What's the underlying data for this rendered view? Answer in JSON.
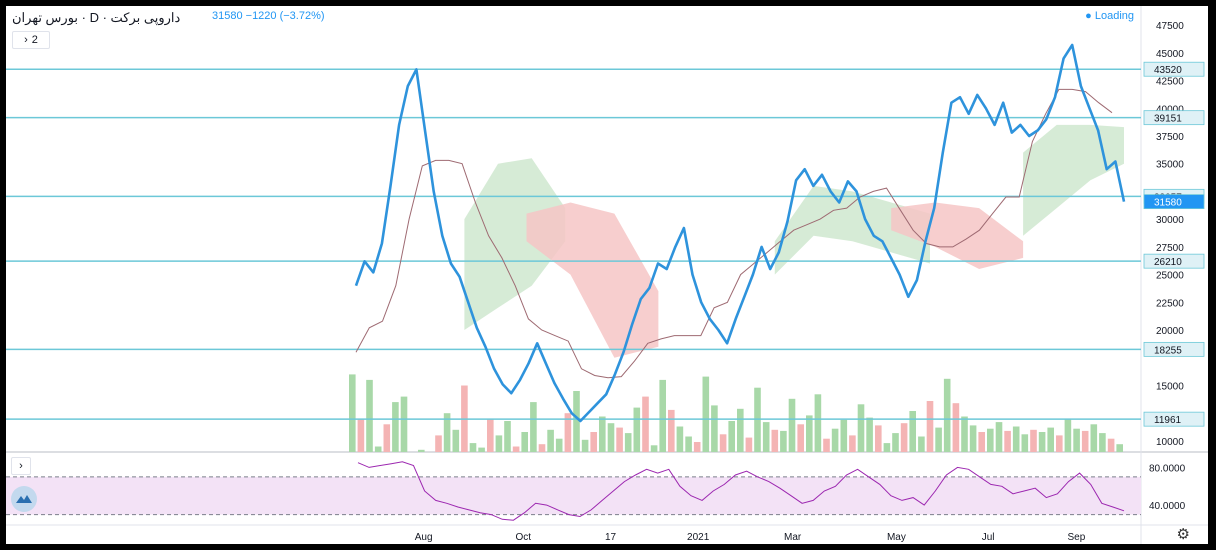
{
  "header": {
    "title": "داروپی برکت · D · بورس تهران",
    "price_line": "31580 −1220 (−3.72%)",
    "loading": "Loading"
  },
  "toolbar": {
    "collapse_count": "2"
  },
  "icons": {
    "collapse": "chevron-right-icon",
    "expand_rsi": "chevron-right-icon",
    "settings": "gear-icon",
    "logo": "mountain-logo-icon"
  },
  "colors": {
    "price_line": "#2e93dc",
    "baseline": "#9e6a72",
    "cloud_bull": "#cfe8cf",
    "cloud_bear": "#f6c5c5",
    "hline": "#6cc8d8",
    "label_bg": "#2196f3",
    "vol_up": "#a8d8a8",
    "vol_down": "#f4b4b4",
    "rsi_line": "#9c27b0",
    "rsi_band": "#f3e2f6"
  },
  "chart_data": {
    "type": "line",
    "title": "داروپی برکت",
    "x_tick_labels": [
      "Aug",
      "Oct",
      "17",
      "2021",
      "Mar",
      "May",
      "Jul",
      "Sep"
    ],
    "y_tick_labels": [
      "47500",
      "45000",
      "42500",
      "40000",
      "37500",
      "35000",
      "30000",
      "27500",
      "25000",
      "22500",
      "20000",
      "15000",
      "10000"
    ],
    "ylim": [
      9000,
      48500
    ],
    "price_labels": [
      "43520",
      "39151",
      "32057",
      "31580",
      "26210",
      "18255",
      "11961"
    ],
    "horizontal_lines": [
      43520,
      39151,
      32057,
      26210,
      18255,
      11961
    ],
    "last_price": 31580,
    "series": [
      {
        "name": "",
        "values": [
          24000,
          26200,
          25200,
          27800,
          33000,
          38500,
          42000,
          43500,
          38000,
          32500,
          28500,
          26000,
          24800,
          22500,
          20200,
          18500,
          16500,
          15100,
          14300,
          15500,
          17000,
          18800,
          17000,
          15200,
          13800,
          12500,
          11800,
          12600,
          13400,
          14200,
          16000,
          18000,
          20500,
          22800,
          23800,
          26000,
          25500,
          27500,
          29200,
          25000,
          22500,
          21000,
          20000,
          18800,
          21000,
          23000,
          25000,
          27500,
          25500,
          27000,
          29800,
          33500,
          34500,
          33000,
          34000,
          32500,
          31500,
          33400,
          32500,
          30000,
          28500,
          28000,
          26500,
          25000,
          23000,
          24500,
          28000,
          31000,
          36000,
          40500,
          41000,
          39500,
          41200,
          40000,
          38500,
          40500,
          37800,
          38500,
          37500,
          38000,
          39000,
          41000,
          44500,
          45700,
          42000,
          40000,
          38000,
          34500,
          35200,
          31580
        ]
      }
    ],
    "baseline_series": [
      18000,
      20200,
      20800,
      24000,
      30000,
      34800,
      35300,
      35300,
      35000,
      31500,
      28500,
      26500,
      24000,
      21000,
      20000,
      19500,
      19000,
      16500,
      15900,
      15700,
      15800,
      17200,
      18800,
      19200,
      19500,
      19500,
      19500,
      22000,
      22500,
      25000,
      26000,
      27000,
      28000,
      29000,
      29500,
      30000,
      30800,
      31000,
      32000,
      32500,
      32800,
      30900,
      29000,
      27800,
      27500,
      27500,
      28200,
      29000,
      30500,
      32000,
      32000,
      37000,
      39500,
      41700,
      41700,
      41500,
      40500,
      39600
    ],
    "cloud": [
      {
        "x_start": 0.15,
        "x_end": 0.28,
        "kind": "bull",
        "upper": [
          30000,
          35000,
          35500,
          31000
        ],
        "lower": [
          20000,
          22000,
          24000,
          28000
        ]
      },
      {
        "x_start": 0.23,
        "x_end": 0.4,
        "kind": "bear",
        "upper": [
          30500,
          31500,
          30500,
          23500
        ],
        "lower": [
          28000,
          25000,
          17500,
          18500
        ]
      },
      {
        "x_start": 0.55,
        "x_end": 0.75,
        "kind": "bull",
        "upper": [
          28000,
          33000,
          32500,
          31500,
          30500
        ],
        "lower": [
          25000,
          28500,
          28000,
          27000,
          26000
        ]
      },
      {
        "x_start": 0.7,
        "x_end": 0.87,
        "kind": "bear",
        "upper": [
          31000,
          31500,
          31000,
          28000
        ],
        "lower": [
          29000,
          27500,
          25500,
          26500
        ]
      },
      {
        "x_start": 0.87,
        "x_end": 1.0,
        "kind": "bull",
        "upper": [
          36000,
          38500,
          38500,
          38300
        ],
        "lower": [
          28500,
          31000,
          33500,
          35000
        ]
      }
    ],
    "volume": [
      16000,
      12000,
      15500,
      9500,
      11500,
      13500,
      14000,
      9000,
      9200,
      8900,
      10500,
      12500,
      11000,
      15000,
      9800,
      9400,
      12000,
      10500,
      11800,
      9500,
      10800,
      13500,
      9700,
      11000,
      10200,
      12500,
      14500,
      10100,
      10800,
      12200,
      11600,
      11200,
      10700,
      13000,
      14000,
      9600,
      15500,
      12800,
      11300,
      10400,
      9900,
      15800,
      13200,
      10600,
      11800,
      12900,
      10300,
      14800,
      11700,
      11000,
      10900,
      13800,
      11500,
      12300,
      14200,
      10200,
      11100,
      11900,
      10500,
      13300,
      12100,
      11400,
      9800,
      10700,
      11600,
      12700,
      10400,
      13600,
      11200,
      15600,
      13400,
      12200,
      11400,
      10800,
      11100,
      11700,
      10900,
      11300,
      10600,
      11000,
      10800,
      11200,
      10500,
      12000,
      11100,
      10900,
      11500,
      10700,
      10200,
      9700
    ],
    "rsi": {
      "ylim": [
        20,
        90
      ],
      "tick_labels": [
        "80.0000",
        "40.0000"
      ],
      "bands": [
        70,
        30
      ],
      "values": [
        85,
        80,
        82,
        84,
        86,
        82,
        55,
        45,
        42,
        38,
        35,
        32,
        30,
        25,
        24,
        32,
        42,
        40,
        35,
        30,
        28,
        35,
        45,
        55,
        65,
        72,
        78,
        74,
        78,
        60,
        50,
        45,
        55,
        62,
        72,
        76,
        70,
        65,
        58,
        50,
        42,
        45,
        55,
        60,
        72,
        78,
        70,
        62,
        50,
        45,
        48,
        40,
        55,
        72,
        80,
        78,
        70,
        62,
        60,
        52,
        55,
        58,
        48,
        52,
        65,
        74,
        62,
        42,
        38,
        34
      ]
    }
  }
}
